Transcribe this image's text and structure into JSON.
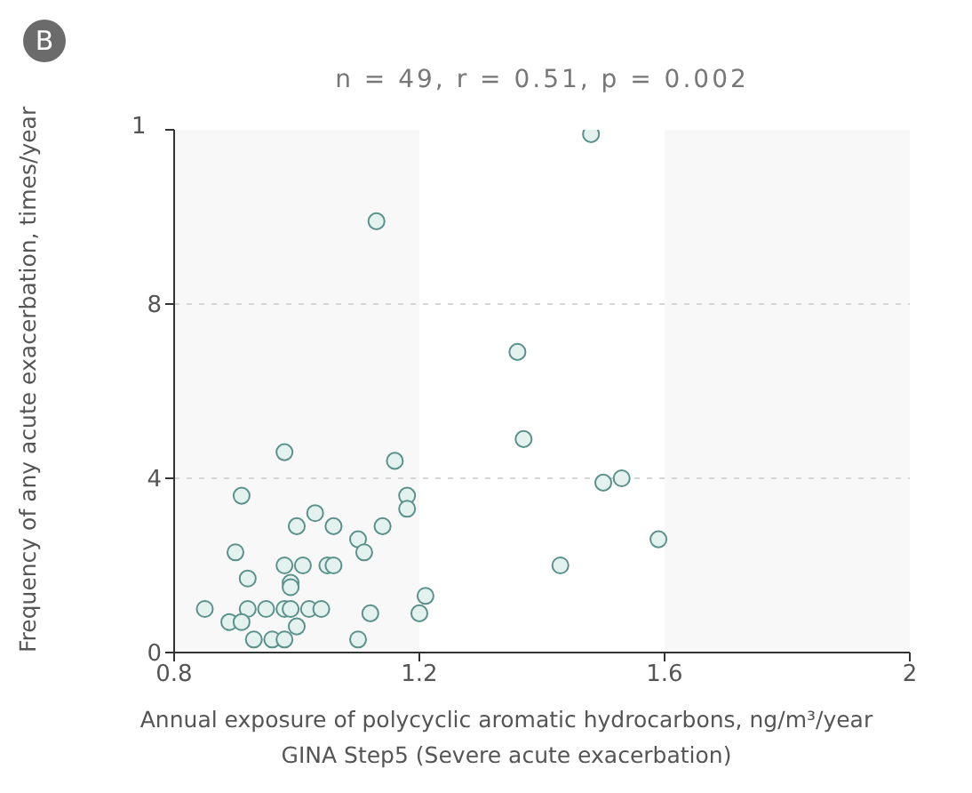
{
  "chart_data": {
    "type": "scatter",
    "title": "n = 49, r = 0.51,  p = 0.002",
    "xlabel": "Annual exposure of polycyclic aromatic hydrocarbons, ng/m³/year",
    "ylabel": "Frequency of any acute exacerbation, times/year",
    "annotations": [
      "B",
      "GINA Step5 (Severe acute exacerbation)",
      "1"
    ],
    "x": [
      1.13,
      0.98,
      1.16,
      0.91,
      1.18,
      1.18,
      1.03,
      1.0,
      1.06,
      1.14,
      1.1,
      1.11,
      0.9,
      0.98,
      1.01,
      1.05,
      1.06,
      0.92,
      0.99,
      0.99,
      1.21,
      0.85,
      0.92,
      0.95,
      0.98,
      0.99,
      1.02,
      1.04,
      1.12,
      1.2,
      0.89,
      0.91,
      1.0,
      0.93,
      0.96,
      0.98,
      1.1,
      1.48,
      1.36,
      1.37,
      1.5,
      1.53,
      1.59,
      1.43
    ],
    "values": [
      9.9,
      4.6,
      4.4,
      3.6,
      3.6,
      3.3,
      3.2,
      2.9,
      2.9,
      2.9,
      2.6,
      2.3,
      2.3,
      2.0,
      2.0,
      2.0,
      2.0,
      1.7,
      1.6,
      1.5,
      1.3,
      1.0,
      1.0,
      1.0,
      1.0,
      1.0,
      1.0,
      1.0,
      0.9,
      0.9,
      0.7,
      0.7,
      0.6,
      0.3,
      0.3,
      0.3,
      0.3,
      11.9,
      6.9,
      4.9,
      3.9,
      4.0,
      2.6,
      2.0
    ],
    "color": "#5b918b",
    "marker": "circle",
    "xlim": [
      0.8,
      2.0
    ],
    "xticks": [
      0.8,
      1.2,
      1.6,
      2.0
    ],
    "ylim": [
      0,
      12
    ],
    "yticks": [
      0,
      4,
      8,
      {
        "value": 12,
        "label": null
      }
    ],
    "grid": "y",
    "bands": [
      {
        "axis": "x",
        "from": 0.8,
        "to": 1.2,
        "color": "#f8f8f8"
      },
      {
        "axis": "x",
        "from": 1.6,
        "to": 2.0,
        "color": "#f8f8f8"
      }
    ]
  }
}
